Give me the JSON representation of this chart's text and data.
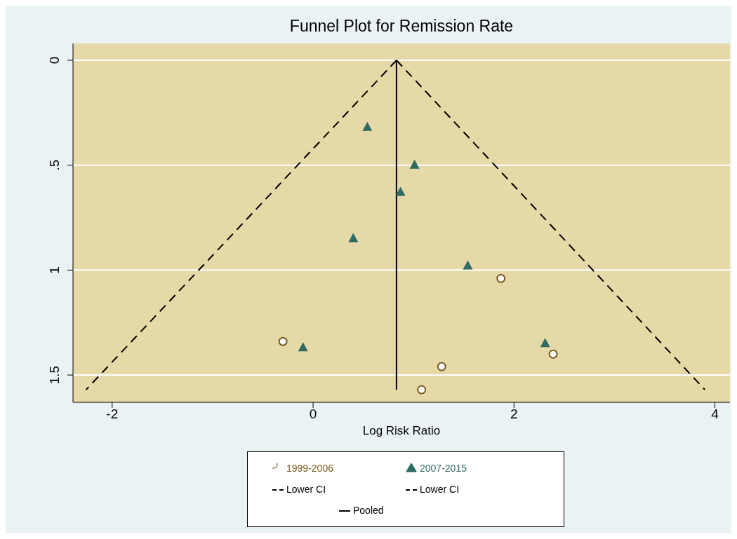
{
  "chart_data": {
    "type": "scatter",
    "title": "Funnel Plot for Remission Rate",
    "xlabel": "Log Risk Ratio",
    "xlim": [
      -2.39,
      4.15
    ],
    "xticks": [
      -2,
      0,
      2,
      4
    ],
    "ylim": [
      1.63,
      -0.08
    ],
    "yticks": [
      0,
      {
        "value": 0.5,
        "label": ".5"
      },
      1,
      1.5
    ],
    "grid": "y",
    "legend": "bottom",
    "series": [
      {
        "name": "1999-2006",
        "marker": "circle",
        "color": "#7a5a1e",
        "x": [
          -0.3,
          1.87,
          2.39,
          1.28,
          1.08
        ],
        "values": [
          1.34,
          1.04,
          1.4,
          1.46,
          1.57
        ]
      },
      {
        "name": "2007-2015",
        "marker": "triangle",
        "color": "#2e6b62",
        "x": [
          0.54,
          1.01,
          0.87,
          0.4,
          1.54,
          -0.1,
          2.31
        ],
        "values": [
          0.32,
          0.5,
          0.63,
          0.85,
          0.98,
          1.37,
          1.35
        ]
      },
      {
        "name": "Lower CI",
        "type": "line",
        "line_style": "dashed",
        "color": "#000000",
        "x": [
          0.83,
          -2.26
        ],
        "values": [
          0,
          1.57
        ]
      },
      {
        "name": "Lower CI",
        "type": "line",
        "line_style": "dashed",
        "color": "#000000",
        "x": [
          0.83,
          3.9
        ],
        "values": [
          0,
          1.57
        ]
      },
      {
        "name": "Pooled",
        "type": "line",
        "line_style": "solid",
        "color": "#000000",
        "x": [
          0.83,
          0.83
        ],
        "values": [
          0,
          1.57
        ]
      }
    ]
  }
}
